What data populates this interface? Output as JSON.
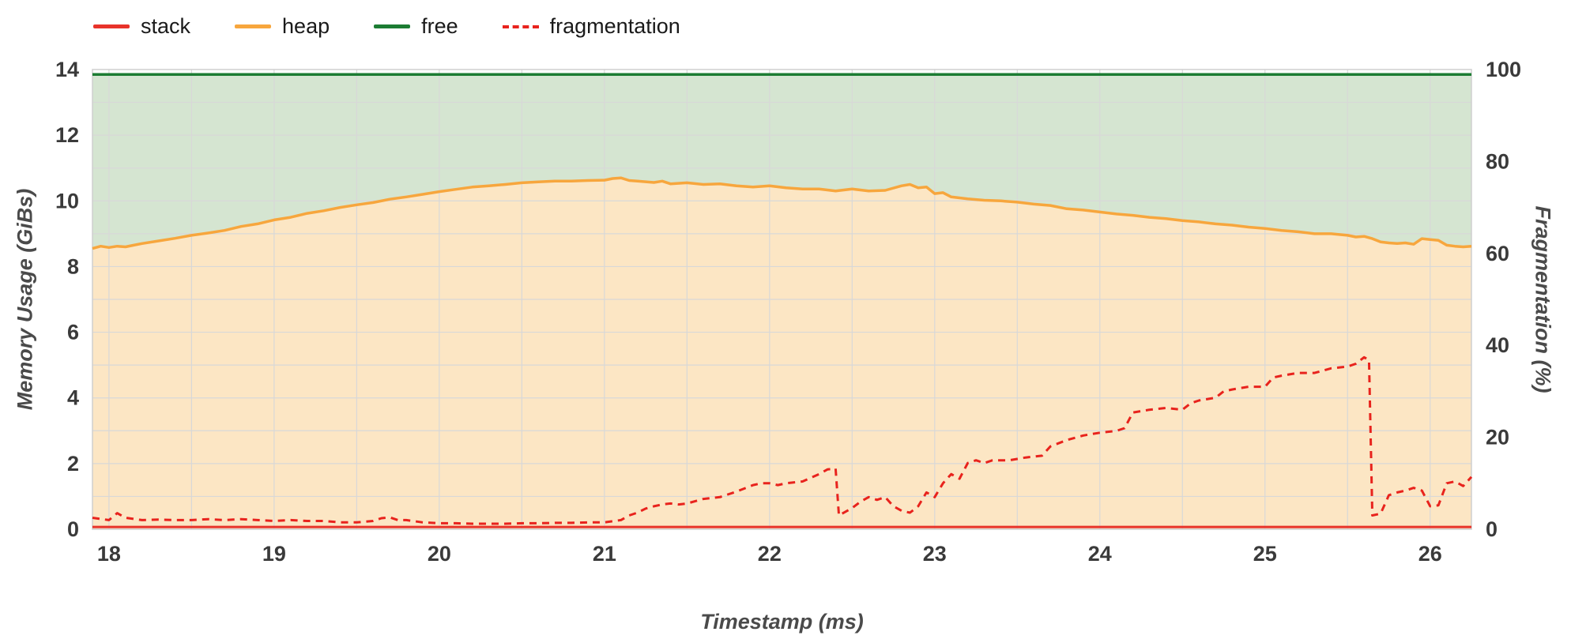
{
  "chart_data": {
    "type": "area",
    "title": "",
    "xlabel": "Timestamp (ms)",
    "ylabel_left": "Memory Usage (GiBs)",
    "ylabel_right": "Fragmentation (%)",
    "x_domain": [
      17.9,
      26.25
    ],
    "y_left_domain": [
      0,
      14
    ],
    "y_right_domain": [
      0,
      100
    ],
    "x_ticks": [
      18,
      19,
      20,
      21,
      22,
      23,
      24,
      25,
      26
    ],
    "y_left_ticks": [
      0,
      2,
      4,
      6,
      8,
      10,
      12,
      14
    ],
    "y_right_ticks": [
      0,
      20,
      40,
      60,
      80,
      100
    ],
    "grid": {
      "x_step": 0.5,
      "y_step": 1,
      "color": "#d8d8d8"
    },
    "legend": [
      {
        "label": "stack",
        "color": "#e8332a",
        "dashed": false
      },
      {
        "label": "heap",
        "color": "#f7a63d",
        "dashed": false
      },
      {
        "label": "free",
        "color": "#1c7c33",
        "dashed": false
      },
      {
        "label": "fragmentation",
        "color": "#e8231d",
        "dashed": true
      }
    ],
    "series": [
      {
        "name": "stack",
        "axis": "left",
        "style": "line",
        "color": "#e8332a",
        "width": 3,
        "points": [
          [
            17.9,
            0.07
          ],
          [
            26.25,
            0.07
          ]
        ]
      },
      {
        "name": "heap",
        "axis": "left",
        "style": "area",
        "color": "#f7a63d",
        "fill": "#fce6c4",
        "width": 3.5,
        "points": [
          [
            17.9,
            8.55
          ],
          [
            17.95,
            8.62
          ],
          [
            18.0,
            8.58
          ],
          [
            18.05,
            8.62
          ],
          [
            18.1,
            8.6
          ],
          [
            18.15,
            8.65
          ],
          [
            18.2,
            8.7
          ],
          [
            18.3,
            8.78
          ],
          [
            18.4,
            8.86
          ],
          [
            18.5,
            8.95
          ],
          [
            18.6,
            9.02
          ],
          [
            18.7,
            9.1
          ],
          [
            18.8,
            9.22
          ],
          [
            18.9,
            9.3
          ],
          [
            19.0,
            9.42
          ],
          [
            19.1,
            9.5
          ],
          [
            19.2,
            9.62
          ],
          [
            19.3,
            9.7
          ],
          [
            19.4,
            9.8
          ],
          [
            19.5,
            9.88
          ],
          [
            19.6,
            9.95
          ],
          [
            19.7,
            10.05
          ],
          [
            19.8,
            10.12
          ],
          [
            19.9,
            10.2
          ],
          [
            20.0,
            10.28
          ],
          [
            20.1,
            10.35
          ],
          [
            20.2,
            10.42
          ],
          [
            20.3,
            10.46
          ],
          [
            20.4,
            10.5
          ],
          [
            20.5,
            10.55
          ],
          [
            20.6,
            10.58
          ],
          [
            20.7,
            10.6
          ],
          [
            20.8,
            10.6
          ],
          [
            20.9,
            10.62
          ],
          [
            21.0,
            10.63
          ],
          [
            21.05,
            10.68
          ],
          [
            21.1,
            10.7
          ],
          [
            21.15,
            10.62
          ],
          [
            21.2,
            10.6
          ],
          [
            21.3,
            10.56
          ],
          [
            21.35,
            10.6
          ],
          [
            21.4,
            10.52
          ],
          [
            21.5,
            10.55
          ],
          [
            21.6,
            10.5
          ],
          [
            21.7,
            10.52
          ],
          [
            21.8,
            10.46
          ],
          [
            21.9,
            10.42
          ],
          [
            22.0,
            10.46
          ],
          [
            22.1,
            10.4
          ],
          [
            22.2,
            10.36
          ],
          [
            22.3,
            10.36
          ],
          [
            22.4,
            10.3
          ],
          [
            22.5,
            10.36
          ],
          [
            22.6,
            10.3
          ],
          [
            22.7,
            10.32
          ],
          [
            22.8,
            10.46
          ],
          [
            22.85,
            10.5
          ],
          [
            22.9,
            10.4
          ],
          [
            22.95,
            10.42
          ],
          [
            23.0,
            10.22
          ],
          [
            23.05,
            10.25
          ],
          [
            23.1,
            10.12
          ],
          [
            23.2,
            10.06
          ],
          [
            23.3,
            10.02
          ],
          [
            23.4,
            10.0
          ],
          [
            23.5,
            9.96
          ],
          [
            23.6,
            9.9
          ],
          [
            23.7,
            9.86
          ],
          [
            23.8,
            9.76
          ],
          [
            23.9,
            9.72
          ],
          [
            24.0,
            9.66
          ],
          [
            24.1,
            9.6
          ],
          [
            24.2,
            9.56
          ],
          [
            24.3,
            9.5
          ],
          [
            24.4,
            9.46
          ],
          [
            24.5,
            9.4
          ],
          [
            24.6,
            9.36
          ],
          [
            24.7,
            9.3
          ],
          [
            24.8,
            9.26
          ],
          [
            24.9,
            9.2
          ],
          [
            25.0,
            9.16
          ],
          [
            25.1,
            9.1
          ],
          [
            25.2,
            9.06
          ],
          [
            25.3,
            9.0
          ],
          [
            25.4,
            9.0
          ],
          [
            25.5,
            8.95
          ],
          [
            25.55,
            8.9
          ],
          [
            25.6,
            8.92
          ],
          [
            25.65,
            8.85
          ],
          [
            25.7,
            8.75
          ],
          [
            25.75,
            8.72
          ],
          [
            25.8,
            8.7
          ],
          [
            25.85,
            8.72
          ],
          [
            25.9,
            8.68
          ],
          [
            25.95,
            8.85
          ],
          [
            26.0,
            8.82
          ],
          [
            26.05,
            8.8
          ],
          [
            26.1,
            8.65
          ],
          [
            26.15,
            8.62
          ],
          [
            26.2,
            8.6
          ],
          [
            26.25,
            8.62
          ]
        ]
      },
      {
        "name": "free",
        "axis": "left",
        "style": "area-above-heap",
        "color": "#1c7c33",
        "fill": "#d5e5d1",
        "width": 3.5,
        "points": [
          [
            17.9,
            13.85
          ],
          [
            26.25,
            13.85
          ]
        ]
      },
      {
        "name": "fragmentation",
        "axis": "right",
        "style": "dashed",
        "color": "#e8231d",
        "width": 3,
        "dash": "9 7",
        "points": [
          [
            17.9,
            2.5
          ],
          [
            18.0,
            2.0
          ],
          [
            18.05,
            3.5
          ],
          [
            18.1,
            2.5
          ],
          [
            18.2,
            2.0
          ],
          [
            18.3,
            2.1
          ],
          [
            18.4,
            2.0
          ],
          [
            18.5,
            2.0
          ],
          [
            18.6,
            2.2
          ],
          [
            18.7,
            2.0
          ],
          [
            18.8,
            2.2
          ],
          [
            18.9,
            2.0
          ],
          [
            19.0,
            1.8
          ],
          [
            19.1,
            2.0
          ],
          [
            19.2,
            1.8
          ],
          [
            19.3,
            1.8
          ],
          [
            19.4,
            1.5
          ],
          [
            19.5,
            1.5
          ],
          [
            19.6,
            1.8
          ],
          [
            19.65,
            2.4
          ],
          [
            19.7,
            2.6
          ],
          [
            19.75,
            2.0
          ],
          [
            19.8,
            2.0
          ],
          [
            19.9,
            1.5
          ],
          [
            20.0,
            1.3
          ],
          [
            20.1,
            1.3
          ],
          [
            20.2,
            1.2
          ],
          [
            20.3,
            1.2
          ],
          [
            20.4,
            1.2
          ],
          [
            20.5,
            1.3
          ],
          [
            20.6,
            1.3
          ],
          [
            20.7,
            1.4
          ],
          [
            20.8,
            1.4
          ],
          [
            20.9,
            1.5
          ],
          [
            21.0,
            1.5
          ],
          [
            21.1,
            2.0
          ],
          [
            21.15,
            3.0
          ],
          [
            21.2,
            3.6
          ],
          [
            21.25,
            4.5
          ],
          [
            21.3,
            5.0
          ],
          [
            21.35,
            5.4
          ],
          [
            21.4,
            5.6
          ],
          [
            21.45,
            5.4
          ],
          [
            21.5,
            5.6
          ],
          [
            21.6,
            6.6
          ],
          [
            21.7,
            7.0
          ],
          [
            21.8,
            8.2
          ],
          [
            21.9,
            9.6
          ],
          [
            21.95,
            10.0
          ],
          [
            22.0,
            10.0
          ],
          [
            22.05,
            9.6
          ],
          [
            22.1,
            10.0
          ],
          [
            22.15,
            10.2
          ],
          [
            22.2,
            10.4
          ],
          [
            22.3,
            12.0
          ],
          [
            22.35,
            13.0
          ],
          [
            22.4,
            13.2
          ],
          [
            22.42,
            3.0
          ],
          [
            22.5,
            4.6
          ],
          [
            22.55,
            6.0
          ],
          [
            22.6,
            7.0
          ],
          [
            22.65,
            6.4
          ],
          [
            22.7,
            7.0
          ],
          [
            22.75,
            5.0
          ],
          [
            22.8,
            4.0
          ],
          [
            22.85,
            3.6
          ],
          [
            22.9,
            5.0
          ],
          [
            22.95,
            8.0
          ],
          [
            23.0,
            7.0
          ],
          [
            23.05,
            10.0
          ],
          [
            23.1,
            12.0
          ],
          [
            23.15,
            11.0
          ],
          [
            23.2,
            14.4
          ],
          [
            23.25,
            15.0
          ],
          [
            23.3,
            14.4
          ],
          [
            23.35,
            15.0
          ],
          [
            23.45,
            15.0
          ],
          [
            23.55,
            15.6
          ],
          [
            23.65,
            16.0
          ],
          [
            23.7,
            18.0
          ],
          [
            23.8,
            19.4
          ],
          [
            23.9,
            20.4
          ],
          [
            24.0,
            21.0
          ],
          [
            24.1,
            21.4
          ],
          [
            24.15,
            22.0
          ],
          [
            24.2,
            25.4
          ],
          [
            24.3,
            26.0
          ],
          [
            24.4,
            26.4
          ],
          [
            24.5,
            26.0
          ],
          [
            24.55,
            27.4
          ],
          [
            24.6,
            28.0
          ],
          [
            24.7,
            28.6
          ],
          [
            24.75,
            30.0
          ],
          [
            24.8,
            30.4
          ],
          [
            24.9,
            31.0
          ],
          [
            25.0,
            31.0
          ],
          [
            25.05,
            33.0
          ],
          [
            25.1,
            33.4
          ],
          [
            25.2,
            34.0
          ],
          [
            25.3,
            34.0
          ],
          [
            25.4,
            35.0
          ],
          [
            25.5,
            35.4
          ],
          [
            25.55,
            36.0
          ],
          [
            25.6,
            37.4
          ],
          [
            25.63,
            36.8
          ],
          [
            25.65,
            3.0
          ],
          [
            25.7,
            3.4
          ],
          [
            25.75,
            7.4
          ],
          [
            25.8,
            8.0
          ],
          [
            25.85,
            8.4
          ],
          [
            25.9,
            9.0
          ],
          [
            25.95,
            8.4
          ],
          [
            26.0,
            5.0
          ],
          [
            26.05,
            5.2
          ],
          [
            26.1,
            10.0
          ],
          [
            26.15,
            10.4
          ],
          [
            26.2,
            9.4
          ],
          [
            26.25,
            11.4
          ]
        ]
      }
    ]
  }
}
